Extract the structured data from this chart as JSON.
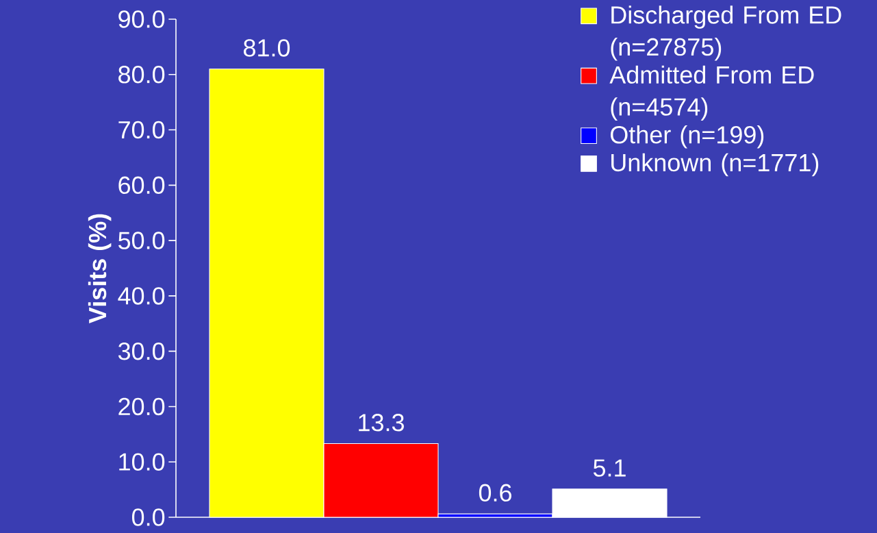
{
  "chart_data": {
    "type": "bar",
    "ylabel": "Visits (%)",
    "categories": [
      null
    ],
    "series": [
      {
        "name": "Discharged From ED (n=27875)",
        "color": "#ffff00",
        "values": [
          81.0
        ],
        "value_labels": [
          "81.0"
        ]
      },
      {
        "name": "Admitted From ED (n=4574)",
        "color": "#ff0000",
        "values": [
          13.3
        ],
        "value_labels": [
          "13.3"
        ]
      },
      {
        "name": "Other (n=199)",
        "color": "#0000ff",
        "values": [
          0.6
        ],
        "value_labels": [
          "0.6"
        ]
      },
      {
        "name": "Unknown (n=1771)",
        "color": "#ffffff",
        "values": [
          5.1
        ],
        "value_labels": [
          "5.1"
        ]
      }
    ],
    "ylim": [
      0,
      90
    ],
    "yticks": [
      {
        "value": 0,
        "label": "0.0"
      },
      {
        "value": 10,
        "label": "10.0"
      },
      {
        "value": 20,
        "label": "20.0"
      },
      {
        "value": 30,
        "label": "30.0"
      },
      {
        "value": 40,
        "label": "40.0"
      },
      {
        "value": 50,
        "label": "50.0"
      },
      {
        "value": 60,
        "label": "60.0"
      },
      {
        "value": 70,
        "label": "70.0"
      },
      {
        "value": 80,
        "label": "80.0"
      },
      {
        "value": 90,
        "label": "90.0"
      }
    ],
    "legend": "top right",
    "grid": false
  }
}
